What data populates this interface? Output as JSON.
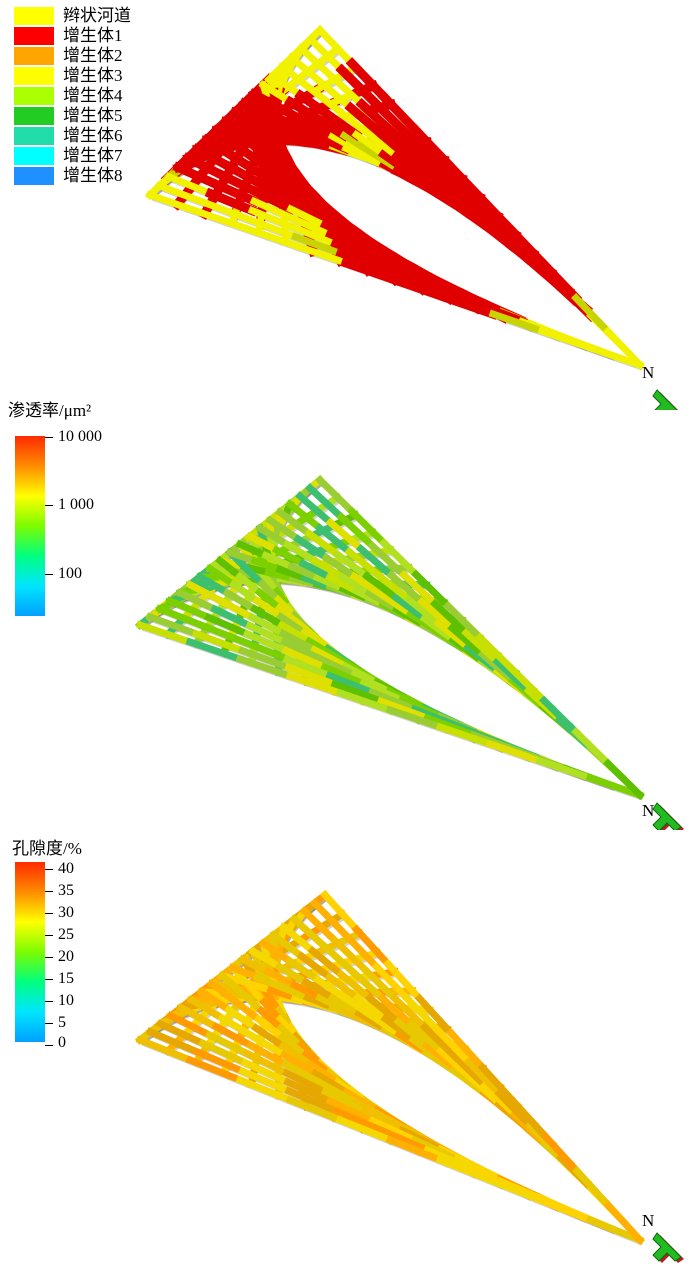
{
  "panel1": {
    "legend": [
      {
        "label": "辫状河道",
        "color": "#ffff00"
      },
      {
        "label": "增生体1",
        "color": "#ff0000"
      },
      {
        "label": "增生体2",
        "color": "#ffa500"
      },
      {
        "label": "增生体3",
        "color": "#ffff00"
      },
      {
        "label": "增生体4",
        "color": "#aaff00"
      },
      {
        "label": "增生体5",
        "color": "#22cc22"
      },
      {
        "label": "增生体6",
        "color": "#22ddaa"
      },
      {
        "label": "增生体7",
        "color": "#00ffff"
      },
      {
        "label": "增生体8",
        "color": "#1e90ff"
      }
    ],
    "north": "N"
  },
  "panel2": {
    "colorbar_title": "渗透率/μm²",
    "ticks": [
      "10 000",
      "1 000",
      "100"
    ],
    "gradient": [
      "#ff2a00",
      "#ff8c00",
      "#ffff00",
      "#7cfc00",
      "#00ff80",
      "#00e5ff",
      "#00a0ff"
    ],
    "north": "N"
  },
  "panel3": {
    "colorbar_title": "孔隙度/%",
    "ticks": [
      "40",
      "35",
      "30",
      "25",
      "20",
      "15",
      "10",
      "5",
      "0"
    ],
    "gradient": [
      "#ff2a00",
      "#ff8c00",
      "#ffff00",
      "#7cfc00",
      "#00ff80",
      "#00e5ff",
      "#00a0ff"
    ],
    "north": "N"
  }
}
